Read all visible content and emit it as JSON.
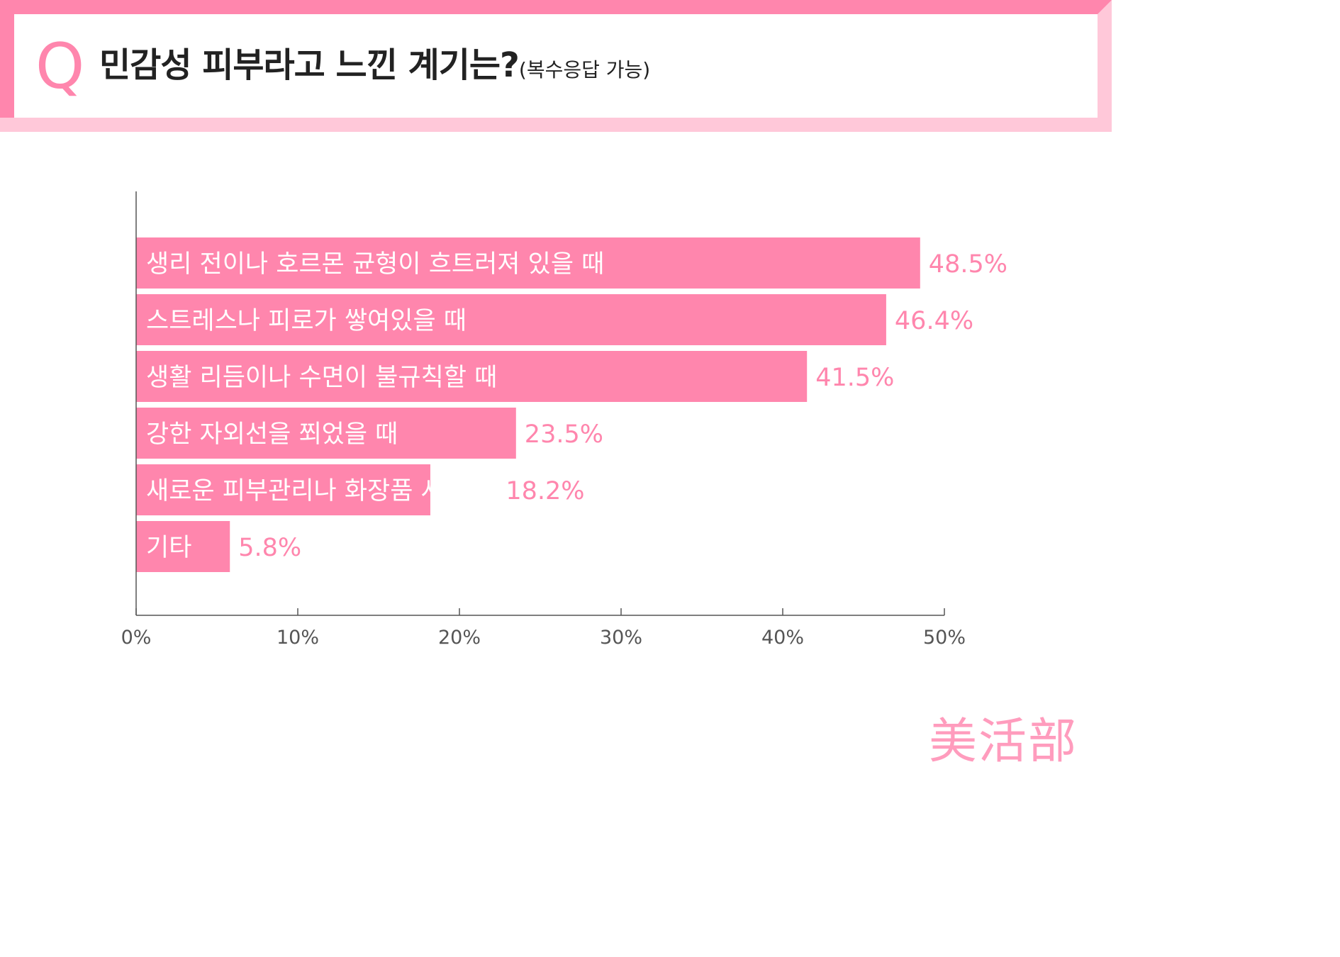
{
  "header": {
    "q_letter": "Q",
    "title": "민감성 피부라고 느낀 계기는?",
    "subtitle": "(복수응답 가능)"
  },
  "colors": {
    "bar": "#ff86ad",
    "value_text": "#ff86ad",
    "axis": "#555555",
    "header_dark": "#ff86ad",
    "header_light": "#ffc8d9"
  },
  "chart_data": {
    "type": "bar",
    "orientation": "horizontal",
    "categories": [
      "생리 전이나 호르몬 균형이 흐트러져 있을 때",
      "스트레스나 피로가 쌓여있을 때",
      "생활 리듬이나 수면이 불규칙할 때",
      "강한 자외선을  쬐었을 때",
      "새로운 피부관리나 화장품 사용 시",
      "기타"
    ],
    "values": [
      48.5,
      46.4,
      41.5,
      23.5,
      18.2,
      5.8
    ],
    "value_labels": [
      "48.5%",
      "46.4%",
      "41.5%",
      "23.5%",
      "18.2%",
      "5.8%"
    ],
    "xlim": [
      0,
      50
    ],
    "x_ticks": [
      0,
      10,
      20,
      30,
      40,
      50
    ],
    "x_tick_labels": [
      "0%",
      "10%",
      "20%",
      "30%",
      "40%",
      "50%"
    ],
    "grid": false,
    "legend": "none"
  },
  "logo": {
    "text": "美活部"
  }
}
